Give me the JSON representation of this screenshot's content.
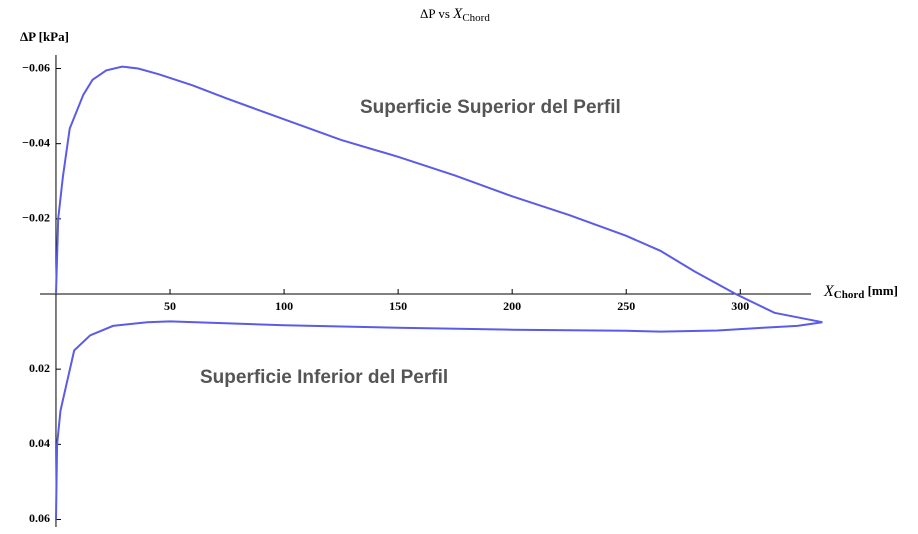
{
  "chart_data": {
    "type": "line",
    "title": {
      "text": "ΔP vs ",
      "symbol": "X",
      "subscript": "Chord"
    },
    "y_label": "ΔP [kPa]",
    "x_label": {
      "symbol": "X",
      "subscript": "Chord",
      "unit": " [mm]"
    },
    "annotations": [
      "Superficie Superior del Perfil",
      "Superficie Inferior del Perfil"
    ],
    "xlim": [
      -7,
      331
    ],
    "xticks": [
      50,
      100,
      150,
      200,
      250,
      300
    ],
    "ylim": [
      0.062,
      -0.062
    ],
    "yticks": [
      {
        "value": -0.06,
        "label": "−0.06"
      },
      {
        "value": -0.04,
        "label": "−0.04"
      },
      {
        "value": -0.02,
        "label": "−0.02"
      },
      0.02,
      0.04,
      0.06
    ],
    "series": [
      {
        "color": "#5b5be8",
        "x": [
          0,
          1,
          3,
          6,
          12,
          16,
          22,
          29,
          36,
          45,
          60,
          75,
          100,
          125,
          150,
          175,
          200,
          225,
          250,
          265,
          280,
          298,
          315,
          336
        ],
        "values": [
          0,
          -0.02,
          -0.031,
          -0.044,
          -0.053,
          -0.057,
          -0.0595,
          -0.0605,
          -0.06,
          -0.0585,
          -0.0555,
          -0.052,
          -0.0465,
          -0.041,
          -0.0365,
          -0.0315,
          -0.026,
          -0.021,
          -0.0155,
          -0.0115,
          -0.006,
          0,
          0.005,
          0.0075
        ]
      },
      {
        "color": "#5b5be8",
        "x": [
          0,
          0.5,
          2,
          8,
          15,
          25,
          40,
          50,
          100,
          150,
          200,
          250,
          265,
          290,
          310,
          325,
          336
        ],
        "values": [
          0.06,
          0.04,
          0.031,
          0.015,
          0.011,
          0.0085,
          0.0075,
          0.0073,
          0.0083,
          0.009,
          0.0095,
          0.0098,
          0.01,
          0.0097,
          0.009,
          0.0085,
          0.0075
        ]
      }
    ]
  }
}
